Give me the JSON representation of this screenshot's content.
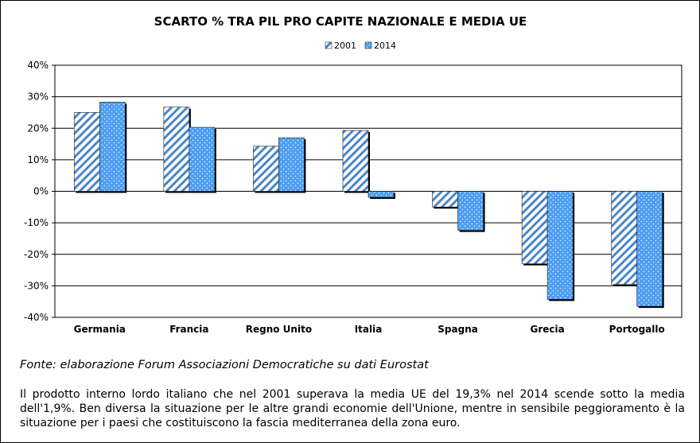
{
  "chart_data": {
    "type": "bar",
    "title": "SCARTO % TRA PIL PRO CAPITE NAZIONALE E MEDIA UE",
    "categories": [
      "Germania",
      "Francia",
      "Regno Unito",
      "Italia",
      "Spagna",
      "Grecia",
      "Portogallo"
    ],
    "series": [
      {
        "name": "2001",
        "values": [
          25,
          26.7,
          14.3,
          19.3,
          -5,
          -23,
          -29.6
        ],
        "color": "#4a86c8",
        "pattern": "diagonal-stripes"
      },
      {
        "name": "2014",
        "values": [
          28.3,
          20.3,
          17,
          -1.9,
          -12.4,
          -34.3,
          -36.5
        ],
        "color": "#4d9ef2",
        "pattern": "dotted-fill"
      }
    ],
    "ylim": [
      -40,
      40
    ],
    "yticks": [
      40,
      30,
      20,
      10,
      0,
      -10,
      -20,
      -30,
      -40
    ],
    "ytick_labels": [
      "40%",
      "30%",
      "20%",
      "10%",
      "0%",
      "-10%",
      "-20%",
      "-30%",
      "-40%"
    ],
    "xlabel": "",
    "ylabel": "",
    "grid": true,
    "legend_position": "top-center"
  },
  "source_text": "Fonte: elaborazione Forum Associazioni Democratiche su dati Eurostat",
  "note_text": "Il prodotto interno lordo italiano che nel 2001 superava la media UE del 19,3% nel 2014 scende sotto la media dell'1,9%. Ben diversa la situazione per le altre grandi economie dell'Unione, mentre in sensibile peggioramento è la situazione per i paesi che costituiscono la fascia mediterranea della zona euro."
}
